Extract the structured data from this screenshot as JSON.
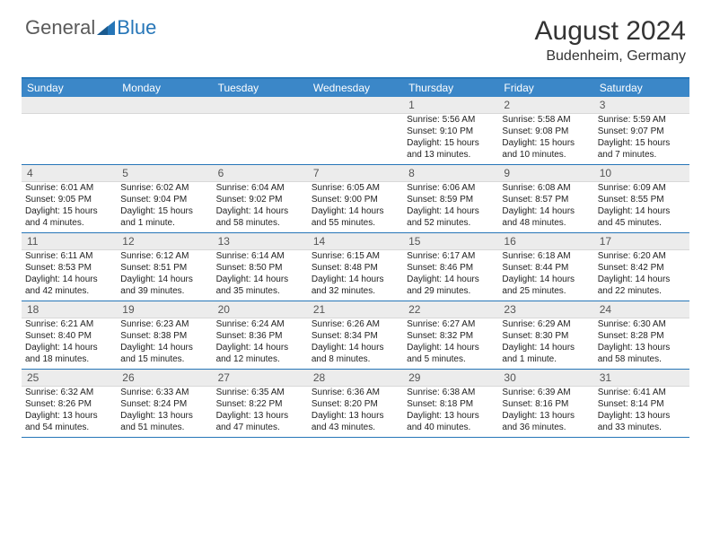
{
  "logo": {
    "general": "General",
    "blue": "Blue"
  },
  "title": "August 2024",
  "location": "Budenheim, Germany",
  "colors": {
    "header_bg": "#3b87c8",
    "border": "#2676b8",
    "daynum_bg": "#ececec",
    "text": "#222222"
  },
  "days": [
    "Sunday",
    "Monday",
    "Tuesday",
    "Wednesday",
    "Thursday",
    "Friday",
    "Saturday"
  ],
  "weeks": [
    [
      null,
      null,
      null,
      null,
      {
        "n": "1",
        "sr": "Sunrise: 5:56 AM",
        "ss": "Sunset: 9:10 PM",
        "dl": "Daylight: 15 hours and 13 minutes."
      },
      {
        "n": "2",
        "sr": "Sunrise: 5:58 AM",
        "ss": "Sunset: 9:08 PM",
        "dl": "Daylight: 15 hours and 10 minutes."
      },
      {
        "n": "3",
        "sr": "Sunrise: 5:59 AM",
        "ss": "Sunset: 9:07 PM",
        "dl": "Daylight: 15 hours and 7 minutes."
      }
    ],
    [
      {
        "n": "4",
        "sr": "Sunrise: 6:01 AM",
        "ss": "Sunset: 9:05 PM",
        "dl": "Daylight: 15 hours and 4 minutes."
      },
      {
        "n": "5",
        "sr": "Sunrise: 6:02 AM",
        "ss": "Sunset: 9:04 PM",
        "dl": "Daylight: 15 hours and 1 minute."
      },
      {
        "n": "6",
        "sr": "Sunrise: 6:04 AM",
        "ss": "Sunset: 9:02 PM",
        "dl": "Daylight: 14 hours and 58 minutes."
      },
      {
        "n": "7",
        "sr": "Sunrise: 6:05 AM",
        "ss": "Sunset: 9:00 PM",
        "dl": "Daylight: 14 hours and 55 minutes."
      },
      {
        "n": "8",
        "sr": "Sunrise: 6:06 AM",
        "ss": "Sunset: 8:59 PM",
        "dl": "Daylight: 14 hours and 52 minutes."
      },
      {
        "n": "9",
        "sr": "Sunrise: 6:08 AM",
        "ss": "Sunset: 8:57 PM",
        "dl": "Daylight: 14 hours and 48 minutes."
      },
      {
        "n": "10",
        "sr": "Sunrise: 6:09 AM",
        "ss": "Sunset: 8:55 PM",
        "dl": "Daylight: 14 hours and 45 minutes."
      }
    ],
    [
      {
        "n": "11",
        "sr": "Sunrise: 6:11 AM",
        "ss": "Sunset: 8:53 PM",
        "dl": "Daylight: 14 hours and 42 minutes."
      },
      {
        "n": "12",
        "sr": "Sunrise: 6:12 AM",
        "ss": "Sunset: 8:51 PM",
        "dl": "Daylight: 14 hours and 39 minutes."
      },
      {
        "n": "13",
        "sr": "Sunrise: 6:14 AM",
        "ss": "Sunset: 8:50 PM",
        "dl": "Daylight: 14 hours and 35 minutes."
      },
      {
        "n": "14",
        "sr": "Sunrise: 6:15 AM",
        "ss": "Sunset: 8:48 PM",
        "dl": "Daylight: 14 hours and 32 minutes."
      },
      {
        "n": "15",
        "sr": "Sunrise: 6:17 AM",
        "ss": "Sunset: 8:46 PM",
        "dl": "Daylight: 14 hours and 29 minutes."
      },
      {
        "n": "16",
        "sr": "Sunrise: 6:18 AM",
        "ss": "Sunset: 8:44 PM",
        "dl": "Daylight: 14 hours and 25 minutes."
      },
      {
        "n": "17",
        "sr": "Sunrise: 6:20 AM",
        "ss": "Sunset: 8:42 PM",
        "dl": "Daylight: 14 hours and 22 minutes."
      }
    ],
    [
      {
        "n": "18",
        "sr": "Sunrise: 6:21 AM",
        "ss": "Sunset: 8:40 PM",
        "dl": "Daylight: 14 hours and 18 minutes."
      },
      {
        "n": "19",
        "sr": "Sunrise: 6:23 AM",
        "ss": "Sunset: 8:38 PM",
        "dl": "Daylight: 14 hours and 15 minutes."
      },
      {
        "n": "20",
        "sr": "Sunrise: 6:24 AM",
        "ss": "Sunset: 8:36 PM",
        "dl": "Daylight: 14 hours and 12 minutes."
      },
      {
        "n": "21",
        "sr": "Sunrise: 6:26 AM",
        "ss": "Sunset: 8:34 PM",
        "dl": "Daylight: 14 hours and 8 minutes."
      },
      {
        "n": "22",
        "sr": "Sunrise: 6:27 AM",
        "ss": "Sunset: 8:32 PM",
        "dl": "Daylight: 14 hours and 5 minutes."
      },
      {
        "n": "23",
        "sr": "Sunrise: 6:29 AM",
        "ss": "Sunset: 8:30 PM",
        "dl": "Daylight: 14 hours and 1 minute."
      },
      {
        "n": "24",
        "sr": "Sunrise: 6:30 AM",
        "ss": "Sunset: 8:28 PM",
        "dl": "Daylight: 13 hours and 58 minutes."
      }
    ],
    [
      {
        "n": "25",
        "sr": "Sunrise: 6:32 AM",
        "ss": "Sunset: 8:26 PM",
        "dl": "Daylight: 13 hours and 54 minutes."
      },
      {
        "n": "26",
        "sr": "Sunrise: 6:33 AM",
        "ss": "Sunset: 8:24 PM",
        "dl": "Daylight: 13 hours and 51 minutes."
      },
      {
        "n": "27",
        "sr": "Sunrise: 6:35 AM",
        "ss": "Sunset: 8:22 PM",
        "dl": "Daylight: 13 hours and 47 minutes."
      },
      {
        "n": "28",
        "sr": "Sunrise: 6:36 AM",
        "ss": "Sunset: 8:20 PM",
        "dl": "Daylight: 13 hours and 43 minutes."
      },
      {
        "n": "29",
        "sr": "Sunrise: 6:38 AM",
        "ss": "Sunset: 8:18 PM",
        "dl": "Daylight: 13 hours and 40 minutes."
      },
      {
        "n": "30",
        "sr": "Sunrise: 6:39 AM",
        "ss": "Sunset: 8:16 PM",
        "dl": "Daylight: 13 hours and 36 minutes."
      },
      {
        "n": "31",
        "sr": "Sunrise: 6:41 AM",
        "ss": "Sunset: 8:14 PM",
        "dl": "Daylight: 13 hours and 33 minutes."
      }
    ]
  ]
}
